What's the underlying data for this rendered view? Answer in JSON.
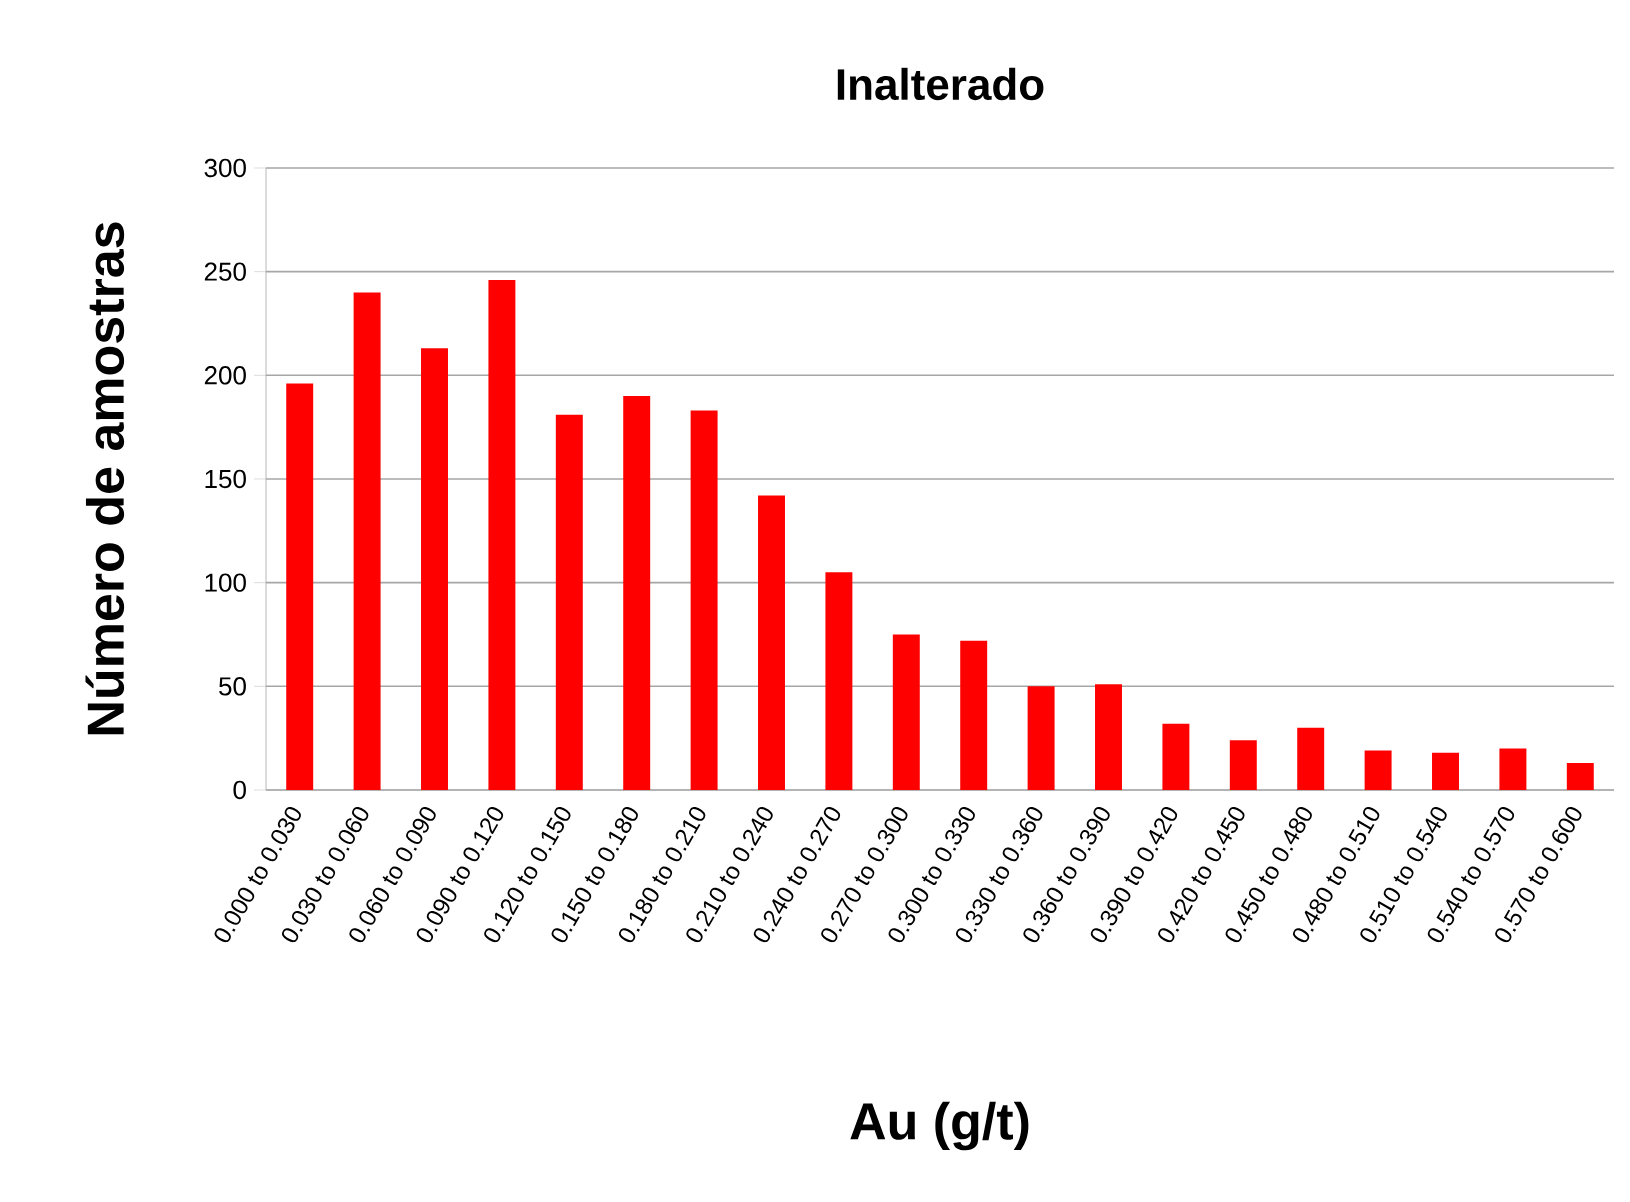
{
  "chart_data": {
    "type": "bar",
    "title": "Inalterado",
    "xlabel": "Au (g/t)",
    "ylabel": "Número de amostras",
    "categories": [
      "0.000 to 0.030",
      "0.030 to 0.060",
      "0.060 to 0.090",
      "0.090 to 0.120",
      "0.120 to 0.150",
      "0.150 to 0.180",
      "0.180 to 0.210",
      "0.210 to 0.240",
      "0.240 to 0.270",
      "0.270 to 0.300",
      "0.300 to 0.330",
      "0.330 to 0.360",
      "0.360 to 0.390",
      "0.390 to 0.420",
      "0.420 to 0.450",
      "0.450 to 0.480",
      "0.480 to 0.510",
      "0.510 to 0.540",
      "0.540 to 0.570",
      "0.570 to 0.600"
    ],
    "values": [
      196,
      240,
      213,
      246,
      181,
      190,
      183,
      142,
      105,
      75,
      72,
      50,
      51,
      32,
      24,
      30,
      19,
      18,
      20,
      13
    ],
    "color": "#ff0000",
    "ylim": [
      0,
      300
    ],
    "yticks": [
      0,
      50,
      100,
      150,
      200,
      250,
      300
    ],
    "grid": "y"
  }
}
